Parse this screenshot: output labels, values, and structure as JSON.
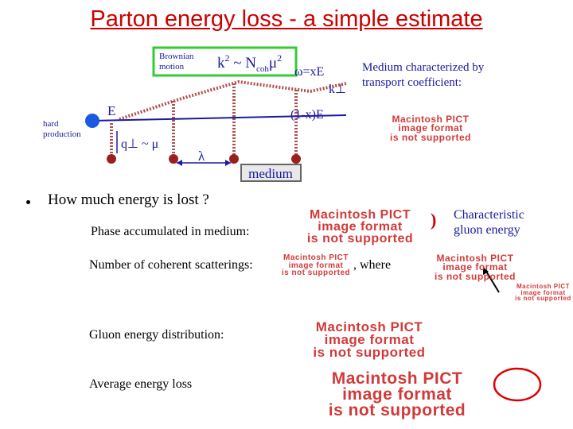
{
  "title": "Parton energy loss - a simple estimate",
  "diagram": {
    "brownian": [
      "Brownian",
      "motion"
    ],
    "formula": [
      "k",
      "2",
      " ~ N",
      "coh",
      "μ",
      "2"
    ],
    "omega": "ω=xE",
    "kt": "k⊥",
    "energy": "E",
    "remaining": "(1-x)E",
    "hard": [
      "hard",
      "production"
    ],
    "qt": "q⊥ ~ μ",
    "lambda": "λ",
    "medium": "medium"
  },
  "medium_note": [
    "Medium characterized by",
    "transport coefficient:"
  ],
  "question": "How much energy is lost ?",
  "phase": "Phase accumulated in medium:",
  "coherent": "Number of coherent scatterings:",
  "where": ",   where",
  "characteristic": [
    "Characteristic",
    "gluon energy"
  ],
  "distribution": "Gluon energy distribution:",
  "average": "Average energy loss",
  "placeholders": [
    [
      "Macintosh PICT",
      "image format",
      "is not supported"
    ],
    [
      "Macintosh PICT",
      "image format",
      "is not supported"
    ],
    [
      "Macintosh PICT",
      "image format",
      "is not supported"
    ],
    [
      "Macintosh PICT",
      "image format",
      "is not supported"
    ],
    [
      "Macintosh PICT",
      "image format",
      "is not supported"
    ],
    [
      "Macintosh PICT",
      "image format",
      "is not supported"
    ],
    [
      "Macintosh PICT",
      "image format",
      "is not supported"
    ]
  ]
}
